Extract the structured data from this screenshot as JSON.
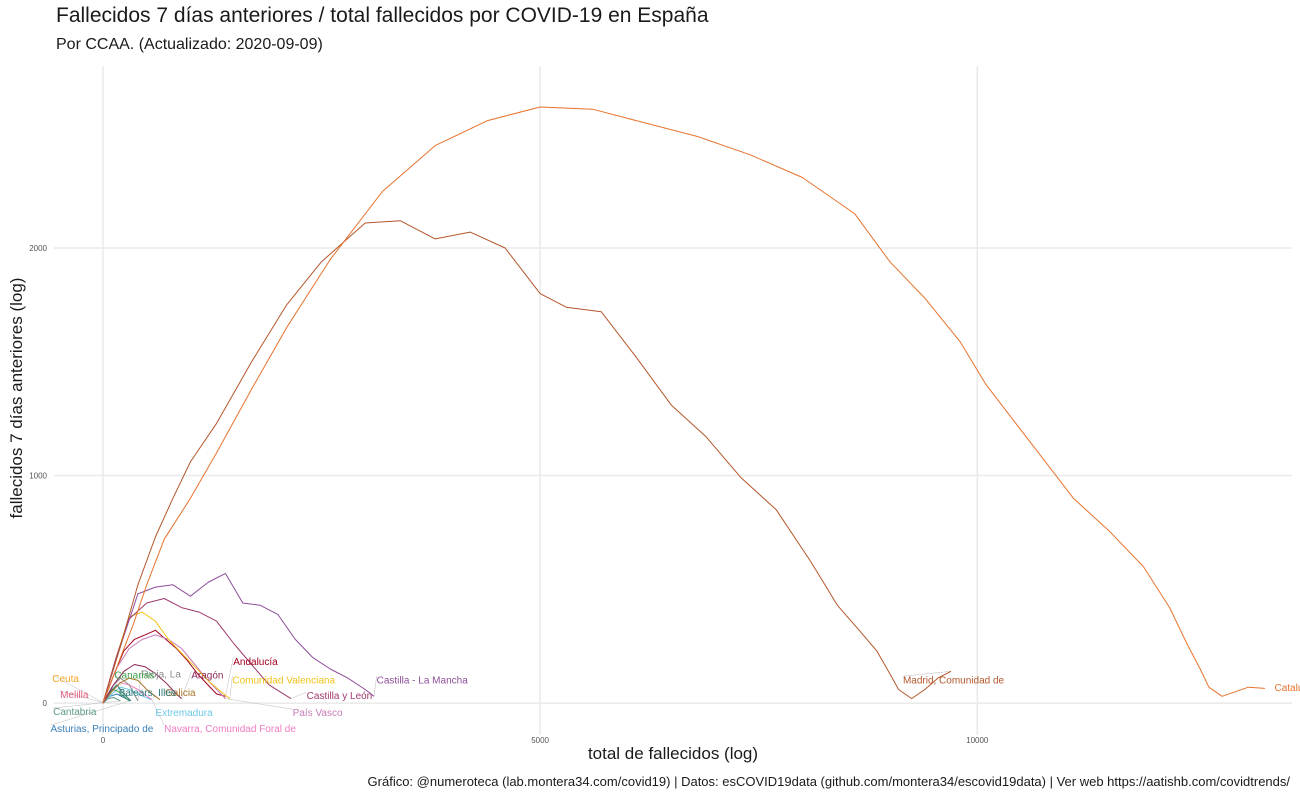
{
  "title": "Fallecidos 7 días anteriores / total fallecidos por COVID-19 en España",
  "subtitle": "Por CCAA. (Actualizado: 2020-09-09)",
  "caption": "Gráfico: @numeroteca (lab.montera34.com/covid19) | Datos: esCOVID19data (github.com/montera34/escovid19data) | Ver web https://aatishb.com/covidtrends/",
  "chart_data": {
    "type": "line",
    "title": "Fallecidos 7 días anteriores / total fallecidos por COVID-19 en España",
    "subtitle": "Por CCAA. (Actualizado: 2020-09-09)",
    "xlabel": "total de fallecidos (log)",
    "ylabel": "fallecidos 7 días anteriores (log)",
    "xlim": [
      -560,
      13600
    ],
    "ylim": [
      -140,
      2800
    ],
    "xticks": [
      0,
      5000,
      10000
    ],
    "xtick_labels": [
      "0",
      "5000",
      "10000"
    ],
    "yticks": [
      0,
      1000,
      2000
    ],
    "ytick_labels": [
      "0",
      "1000",
      "2000"
    ],
    "grid": true,
    "legend": "none (direct labels)",
    "series": [
      {
        "name": "Cataluña",
        "color": "#e6732d",
        "label_at": [
          13400,
          70
        ],
        "line_end": [
          13290,
          70
        ],
        "x": [
          0,
          150,
          350,
          500,
          700,
          1000,
          1300,
          1700,
          2100,
          2600,
          3200,
          3800,
          4400,
          5000,
          5600,
          6200,
          6800,
          7400,
          8000,
          8600,
          9000,
          9400,
          9800,
          10100,
          10400,
          10700,
          11100,
          11500,
          11900,
          12200,
          12400,
          12550,
          12650,
          12800,
          12950,
          13100,
          13290
        ],
        "y": [
          0,
          150,
          350,
          520,
          720,
          900,
          1100,
          1380,
          1650,
          1950,
          2250,
          2450,
          2560,
          2620,
          2610,
          2550,
          2490,
          2410,
          2310,
          2150,
          1940,
          1780,
          1590,
          1400,
          1250,
          1100,
          900,
          760,
          600,
          420,
          260,
          150,
          70,
          30,
          50,
          70,
          65
        ]
      },
      {
        "name": "Madrid, Comunidad de",
        "color": "#b4562b",
        "label_at": [
          9150,
          105
        ],
        "line_end": [
          9700,
          140
        ],
        "x": [
          0,
          200,
          400,
          600,
          800,
          1000,
          1300,
          1700,
          2100,
          2500,
          3000,
          3400,
          3800,
          4200,
          4600,
          5000,
          5300,
          5700,
          6100,
          6500,
          6900,
          7300,
          7700,
          8100,
          8400,
          8650,
          8850,
          9000,
          9100,
          9250,
          9400,
          9550,
          9700
        ],
        "y": [
          0,
          250,
          520,
          730,
          900,
          1060,
          1230,
          1500,
          1750,
          1940,
          2110,
          2120,
          2040,
          2070,
          2000,
          1800,
          1740,
          1720,
          1520,
          1310,
          1170,
          990,
          850,
          620,
          430,
          320,
          230,
          130,
          60,
          20,
          60,
          110,
          140
        ]
      },
      {
        "name": "Castilla - La Mancha",
        "color": "#8e4e9b",
        "label_at": [
          3130,
          105
        ],
        "line_end": [
          3100,
          30
        ],
        "x": [
          0,
          200,
          400,
          600,
          800,
          1000,
          1200,
          1400,
          1600,
          1800,
          2000,
          2200,
          2400,
          2600,
          2800,
          3000,
          3100
        ],
        "y": [
          0,
          250,
          480,
          510,
          520,
          470,
          530,
          570,
          440,
          430,
          390,
          280,
          200,
          150,
          110,
          60,
          30
        ]
      },
      {
        "name": "Castilla y León",
        "color": "#9f3b6e",
        "label_at": [
          2330,
          35
        ],
        "line_end": [
          2150,
          20
        ],
        "x": [
          0,
          150,
          300,
          500,
          700,
          900,
          1100,
          1300,
          1500,
          1700,
          1900,
          2150
        ],
        "y": [
          0,
          200,
          370,
          440,
          460,
          420,
          400,
          360,
          260,
          170,
          80,
          20
        ]
      },
      {
        "name": "Comunidad Valenciana",
        "color": "#f2c21b",
        "label_at": [
          1480,
          105
        ],
        "line_end": [
          1450,
          20
        ],
        "x": [
          0,
          150,
          300,
          450,
          600,
          750,
          900,
          1050,
          1200,
          1350,
          1450
        ],
        "y": [
          0,
          200,
          380,
          400,
          360,
          280,
          220,
          160,
          100,
          50,
          20
        ]
      },
      {
        "name": "País Vasco",
        "color": "#c77bb5",
        "label_at": [
          2170,
          -40
        ],
        "line_end": [
          1400,
          20
        ],
        "x": [
          0,
          150,
          300,
          450,
          600,
          750,
          900,
          1050,
          1200,
          1400
        ],
        "y": [
          0,
          150,
          240,
          280,
          300,
          280,
          240,
          170,
          100,
          20
        ]
      },
      {
        "name": "Andalucía",
        "color": "#a2001e",
        "label_at": [
          1490,
          185
        ],
        "line_end": [
          1400,
          30
        ],
        "x": [
          0,
          120,
          240,
          360,
          480,
          600,
          720,
          840,
          960,
          1080,
          1200,
          1300,
          1400
        ],
        "y": [
          0,
          120,
          230,
          280,
          300,
          320,
          280,
          240,
          190,
          130,
          80,
          40,
          30
        ]
      },
      {
        "name": "Aragón",
        "color": "#8b2556",
        "label_at": [
          1010,
          125
        ],
        "line_end": [
          900,
          20
        ],
        "x": [
          0,
          120,
          240,
          360,
          480,
          600,
          720,
          840,
          900
        ],
        "y": [
          0,
          80,
          140,
          170,
          160,
          130,
          90,
          40,
          20
        ]
      },
      {
        "name": "Galicia",
        "color": "#a9742c",
        "label_at": [
          710,
          50
        ],
        "line_end": [
          650,
          15
        ],
        "x": [
          0,
          100,
          200,
          300,
          400,
          500,
          650
        ],
        "y": [
          0,
          50,
          90,
          110,
          100,
          60,
          15
        ]
      },
      {
        "name": "Rioja, La",
        "color": "#8c8c8c",
        "label_at": [
          440,
          130
        ],
        "line_end": [
          400,
          10
        ],
        "x": [
          0,
          100,
          200,
          300,
          400
        ],
        "y": [
          0,
          70,
          110,
          80,
          10
        ]
      },
      {
        "name": "Canarias",
        "color": "#3f9f4a",
        "label_at": [
          130,
          125
        ],
        "line_end": [
          300,
          10
        ],
        "x": [
          0,
          60,
          120,
          180,
          240,
          300
        ],
        "y": [
          0,
          40,
          60,
          50,
          30,
          10
        ]
      },
      {
        "name": "Balears, Illes",
        "color": "#2c7a7a",
        "label_at": [
          180,
          50
        ],
        "line_end": [
          320,
          10
        ],
        "x": [
          0,
          80,
          160,
          240,
          320
        ],
        "y": [
          0,
          50,
          80,
          40,
          10
        ]
      },
      {
        "name": "Extremadura",
        "color": "#6fc8e8",
        "label_at": [
          600,
          -40
        ],
        "line_end": [
          550,
          15
        ],
        "x": [
          0,
          100,
          200,
          300,
          400,
          550
        ],
        "y": [
          0,
          40,
          70,
          60,
          40,
          15
        ]
      },
      {
        "name": "Navarra, Comunidad Foral de",
        "color": "#f07cc1",
        "label_at": [
          700,
          -110
        ],
        "line_end": [
          560,
          15
        ],
        "x": [
          0,
          100,
          200,
          300,
          400,
          560
        ],
        "y": [
          0,
          60,
          90,
          80,
          60,
          15
        ]
      },
      {
        "name": "Asturias, Principado de",
        "color": "#3a7fb8",
        "label_at": [
          -600,
          -110
        ],
        "line_end": [
          310,
          10
        ],
        "x": [
          0,
          80,
          160,
          240,
          310
        ],
        "y": [
          0,
          30,
          40,
          25,
          10
        ]
      },
      {
        "name": "Cantabria",
        "color": "#5c9a7e",
        "label_at": [
          -570,
          -35
        ],
        "line_end": [
          200,
          10
        ],
        "x": [
          0,
          60,
          120,
          200
        ],
        "y": [
          0,
          20,
          25,
          10
        ]
      },
      {
        "name": "Melilla",
        "color": "#e15a7d",
        "label_at": [
          -490,
          40
        ],
        "line_end": [
          5,
          2
        ],
        "x": [
          0,
          5
        ],
        "y": [
          0,
          2
        ]
      },
      {
        "name": "Ceuta",
        "color": "#f5a623",
        "label_at": [
          -580,
          110
        ],
        "line_end": [
          4,
          2
        ],
        "x": [
          0,
          4
        ],
        "y": [
          0,
          2
        ]
      }
    ]
  }
}
